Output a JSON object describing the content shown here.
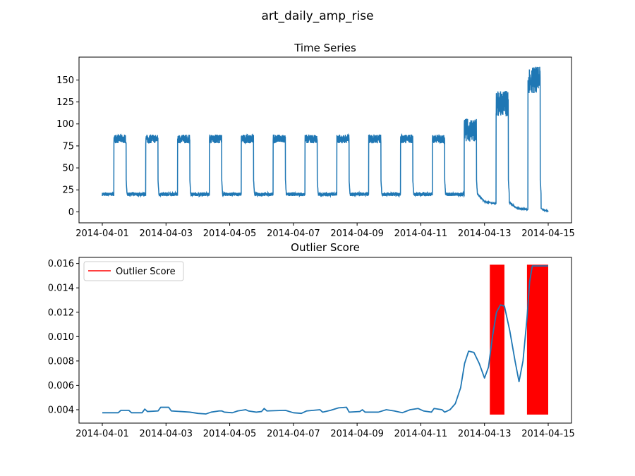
{
  "figure": {
    "title": "art_daily_amp_rise"
  },
  "chart_data": [
    {
      "type": "line",
      "title": "Time Series",
      "xlabel": "",
      "ylabel": "",
      "x_range": [
        "2014-04-01",
        "2014-04-15"
      ],
      "ylim": [
        -12.5,
        176
      ],
      "x_ticks": [
        "2014-04-01",
        "2014-04-03",
        "2014-04-05",
        "2014-04-07",
        "2014-04-09",
        "2014-04-11",
        "2014-04-13",
        "2014-04-15"
      ],
      "y_ticks": [
        0,
        25,
        50,
        75,
        100,
        125,
        150
      ],
      "grid": false,
      "line_color": "#1f77b4",
      "series": [
        {
          "description": "daily activity bursts; each day low plateau ~20, high plateau from ~8:45 to ~18:00",
          "high_plateaus": [
            {
              "day": "2014-04-01",
              "low": 78,
              "high": 88
            },
            {
              "day": "2014-04-02",
              "low": 78,
              "high": 88
            },
            {
              "day": "2014-04-03",
              "low": 78,
              "high": 88
            },
            {
              "day": "2014-04-04",
              "low": 78,
              "high": 88
            },
            {
              "day": "2014-04-05",
              "low": 78,
              "high": 88
            },
            {
              "day": "2014-04-06",
              "low": 78,
              "high": 88
            },
            {
              "day": "2014-04-07",
              "low": 78,
              "high": 88
            },
            {
              "day": "2014-04-08",
              "low": 78,
              "high": 88
            },
            {
              "day": "2014-04-09",
              "low": 78,
              "high": 88
            },
            {
              "day": "2014-04-10",
              "low": 78,
              "high": 88
            },
            {
              "day": "2014-04-11",
              "low": 78,
              "high": 88
            },
            {
              "day": "2014-04-12",
              "low": 80,
              "high": 106
            },
            {
              "day": "2014-04-13",
              "low": 108,
              "high": 138
            },
            {
              "day": "2014-04-14",
              "low": 135,
              "high": 165
            }
          ],
          "low_level": [
            18,
            22
          ],
          "tail_decay": [
            {
              "day": "2014-04-12",
              "start": 20,
              "end": 11
            },
            {
              "day": "2014-04-13",
              "start": 10,
              "end": 4
            },
            {
              "day": "2014-04-14",
              "start": 3,
              "end": 0
            }
          ]
        }
      ]
    },
    {
      "type": "line",
      "title": "Outlier Score",
      "xlabel": "",
      "ylabel": "",
      "x_range": [
        "2014-04-01",
        "2014-04-15"
      ],
      "ylim": [
        0.0029,
        0.0165
      ],
      "x_ticks": [
        "2014-04-01",
        "2014-04-03",
        "2014-04-05",
        "2014-04-07",
        "2014-04-09",
        "2014-04-11",
        "2014-04-13",
        "2014-04-15"
      ],
      "y_ticks": [
        "0.004",
        "0.006",
        "0.008",
        "0.010",
        "0.012",
        "0.014",
        "0.016"
      ],
      "grid": false,
      "legend": {
        "placement": "top-left",
        "entries": [
          {
            "label": "Outlier Score",
            "color": "#ff0000"
          }
        ]
      },
      "line_color": "#1f77b4",
      "anomaly_color": "#ff0000",
      "series": [
        {
          "name": "Outlier Score",
          "points": [
            [
              "2014-04-01T00:00",
              0.00375
            ],
            [
              "2014-04-01T12:00",
              0.00375
            ],
            [
              "2014-04-01T14:00",
              0.00395
            ],
            [
              "2014-04-01T20:00",
              0.00395
            ],
            [
              "2014-04-01T22:00",
              0.00375
            ],
            [
              "2014-04-02T06:00",
              0.00375
            ],
            [
              "2014-04-02T08:00",
              0.00405
            ],
            [
              "2014-04-02T10:00",
              0.00385
            ],
            [
              "2014-04-02T18:00",
              0.0039
            ],
            [
              "2014-04-02T20:00",
              0.0042
            ],
            [
              "2014-04-03T02:00",
              0.0042
            ],
            [
              "2014-04-03T04:00",
              0.0039
            ],
            [
              "2014-04-03T18:00",
              0.0038
            ],
            [
              "2014-04-04T00:00",
              0.0037
            ],
            [
              "2014-04-04T06:00",
              0.00365
            ],
            [
              "2014-04-04T10:00",
              0.0038
            ],
            [
              "2014-04-04T16:00",
              0.0039
            ],
            [
              "2014-04-04T18:00",
              0.0039
            ],
            [
              "2014-04-04T20:00",
              0.0038
            ],
            [
              "2014-04-05T02:00",
              0.00375
            ],
            [
              "2014-04-05T06:00",
              0.0039
            ],
            [
              "2014-04-05T12:00",
              0.004
            ],
            [
              "2014-04-05T14:00",
              0.0039
            ],
            [
              "2014-04-05T20:00",
              0.0038
            ],
            [
              "2014-04-06T00:00",
              0.00385
            ],
            [
              "2014-04-06T02:00",
              0.0041
            ],
            [
              "2014-04-06T04:00",
              0.0039
            ],
            [
              "2014-04-06T18:00",
              0.00395
            ],
            [
              "2014-04-07T00:00",
              0.00375
            ],
            [
              "2014-04-07T06:00",
              0.0037
            ],
            [
              "2014-04-07T10:00",
              0.0039
            ],
            [
              "2014-04-07T20:00",
              0.004
            ],
            [
              "2014-04-07T22:00",
              0.0038
            ],
            [
              "2014-04-08T04:00",
              0.00395
            ],
            [
              "2014-04-08T10:00",
              0.00415
            ],
            [
              "2014-04-08T16:00",
              0.0042
            ],
            [
              "2014-04-08T18:00",
              0.0038
            ],
            [
              "2014-04-09T02:00",
              0.00385
            ],
            [
              "2014-04-09T04:00",
              0.004
            ],
            [
              "2014-04-09T06:00",
              0.0038
            ],
            [
              "2014-04-09T16:00",
              0.0038
            ],
            [
              "2014-04-09T22:00",
              0.004
            ],
            [
              "2014-04-10T04:00",
              0.0039
            ],
            [
              "2014-04-10T10:00",
              0.00375
            ],
            [
              "2014-04-10T16:00",
              0.004
            ],
            [
              "2014-04-10T22:00",
              0.0041
            ],
            [
              "2014-04-11T02:00",
              0.0039
            ],
            [
              "2014-04-11T08:00",
              0.0038
            ],
            [
              "2014-04-11T10:00",
              0.0041
            ],
            [
              "2014-04-11T16:00",
              0.004
            ],
            [
              "2014-04-11T18:00",
              0.0038
            ],
            [
              "2014-04-11T22:00",
              0.004
            ],
            [
              "2014-04-12T02:00",
              0.0045
            ],
            [
              "2014-04-12T06:00",
              0.0058
            ],
            [
              "2014-04-12T09:00",
              0.0078
            ],
            [
              "2014-04-12T12:00",
              0.0088
            ],
            [
              "2014-04-12T16:00",
              0.0087
            ],
            [
              "2014-04-12T20:00",
              0.0078
            ],
            [
              "2014-04-13T00:00",
              0.0066
            ],
            [
              "2014-04-13T03:00",
              0.0075
            ],
            [
              "2014-04-13T06:00",
              0.01
            ],
            [
              "2014-04-13T09:00",
              0.012
            ],
            [
              "2014-04-13T12:00",
              0.0126
            ],
            [
              "2014-04-13T15:00",
              0.0125
            ],
            [
              "2014-04-13T19:00",
              0.0105
            ],
            [
              "2014-04-13T23:00",
              0.008
            ],
            [
              "2014-04-14T02:00",
              0.0063
            ],
            [
              "2014-04-14T05:00",
              0.008
            ],
            [
              "2014-04-14T08:00",
              0.0115
            ],
            [
              "2014-04-14T10:00",
              0.0145
            ],
            [
              "2014-04-14T12:00",
              0.0158
            ],
            [
              "2014-04-14T18:00",
              0.0158
            ],
            [
              "2014-04-15T00:00",
              0.0158
            ]
          ]
        }
      ],
      "anomaly_bands": [
        {
          "start": "2014-04-13T04:00",
          "end": "2014-04-13T15:00",
          "ymin": 0.0036,
          "ymax": 0.0159
        },
        {
          "start": "2014-04-14T08:00",
          "end": "2014-04-15T00:00",
          "ymin": 0.0036,
          "ymax": 0.0159
        }
      ]
    }
  ]
}
